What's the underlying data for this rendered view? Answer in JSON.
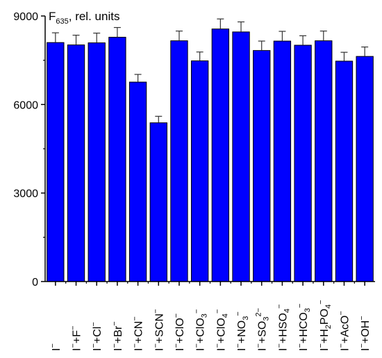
{
  "chart_data": {
    "type": "bar",
    "ylabel": "F635, rel. units",
    "ylabel_main": "F",
    "ylabel_sub": "635",
    "ylabel_rest": ", rel. units",
    "ylim": [
      0,
      9000
    ],
    "yticks": [
      0,
      3000,
      6000,
      9000
    ],
    "grid": false,
    "bar_color": "#0000ff",
    "bar_edge_color": "#000000",
    "categories": [
      "I⁻",
      "I⁻+F⁻",
      "I⁻+Cl⁻",
      "I⁻+Br⁻",
      "I⁻+CN⁻",
      "I⁻+SCN⁻",
      "I⁻+ClO⁻",
      "I⁻+ClO₃⁻",
      "I⁻+ClO₄⁻",
      "I⁻+NO₃⁻",
      "I⁻+SO₃²⁻",
      "I⁻+HSO₄⁻",
      "I⁻+HCO₃⁻",
      "I⁻+H₂PO₄⁻",
      "I⁻+AcO⁻",
      "I⁻+OH⁻"
    ],
    "label_parts": [
      [
        [
          "I",
          ""
        ],
        [
          "−",
          "sup"
        ]
      ],
      [
        [
          "I",
          ""
        ],
        [
          "−",
          "sup"
        ],
        [
          "+F",
          ""
        ],
        [
          "−",
          "sup"
        ]
      ],
      [
        [
          "I",
          ""
        ],
        [
          "−",
          "sup"
        ],
        [
          "+Cl",
          ""
        ],
        [
          "−",
          "sup"
        ]
      ],
      [
        [
          "I",
          ""
        ],
        [
          "−",
          "sup"
        ],
        [
          "+Br",
          ""
        ],
        [
          "−",
          "sup"
        ]
      ],
      [
        [
          "I",
          ""
        ],
        [
          "−",
          "sup"
        ],
        [
          "+CN",
          ""
        ],
        [
          "−",
          "sup"
        ]
      ],
      [
        [
          "I",
          ""
        ],
        [
          "−",
          "sup"
        ],
        [
          "+SCN",
          ""
        ],
        [
          "−",
          "sup"
        ]
      ],
      [
        [
          "I",
          ""
        ],
        [
          "−",
          "sup"
        ],
        [
          "+ClO",
          ""
        ],
        [
          "−",
          "sup"
        ]
      ],
      [
        [
          "I",
          ""
        ],
        [
          "−",
          "sup"
        ],
        [
          "+ClO",
          ""
        ],
        [
          "3",
          "sub"
        ],
        [
          "−",
          "sup"
        ]
      ],
      [
        [
          "I",
          ""
        ],
        [
          "−",
          "sup"
        ],
        [
          "+ClO",
          ""
        ],
        [
          "4",
          "sub"
        ],
        [
          "−",
          "sup"
        ]
      ],
      [
        [
          "I",
          ""
        ],
        [
          "−",
          "sup"
        ],
        [
          "+NO",
          ""
        ],
        [
          "3",
          "sub"
        ],
        [
          "−",
          "sup"
        ]
      ],
      [
        [
          "I",
          ""
        ],
        [
          "−",
          "sup"
        ],
        [
          "+SO",
          ""
        ],
        [
          "3",
          "sub"
        ],
        [
          "2−",
          "sup"
        ]
      ],
      [
        [
          "I",
          ""
        ],
        [
          "−",
          "sup"
        ],
        [
          "+HSO",
          ""
        ],
        [
          "4",
          "sub"
        ],
        [
          "−",
          "sup"
        ]
      ],
      [
        [
          "I",
          ""
        ],
        [
          "−",
          "sup"
        ],
        [
          "+HCO",
          ""
        ],
        [
          "3",
          "sub"
        ],
        [
          "−",
          "sup"
        ]
      ],
      [
        [
          "I",
          ""
        ],
        [
          "−",
          "sup"
        ],
        [
          "+H",
          ""
        ],
        [
          "2",
          "sub"
        ],
        [
          "PO",
          ""
        ],
        [
          "4",
          "sub"
        ],
        [
          "−",
          "sup"
        ]
      ],
      [
        [
          "I",
          ""
        ],
        [
          "−",
          "sup"
        ],
        [
          "+AcO",
          ""
        ],
        [
          "−",
          "sup"
        ]
      ],
      [
        [
          "I",
          ""
        ],
        [
          "−",
          "sup"
        ],
        [
          "+OH",
          ""
        ],
        [
          "−",
          "sup"
        ]
      ]
    ],
    "values": [
      8100,
      8020,
      8090,
      8280,
      6760,
      5380,
      8160,
      7480,
      8560,
      8460,
      7830,
      8150,
      8010,
      8160,
      7470,
      7630
    ],
    "errors": [
      330,
      330,
      330,
      330,
      260,
      220,
      330,
      300,
      340,
      340,
      320,
      330,
      320,
      330,
      300,
      320
    ]
  }
}
